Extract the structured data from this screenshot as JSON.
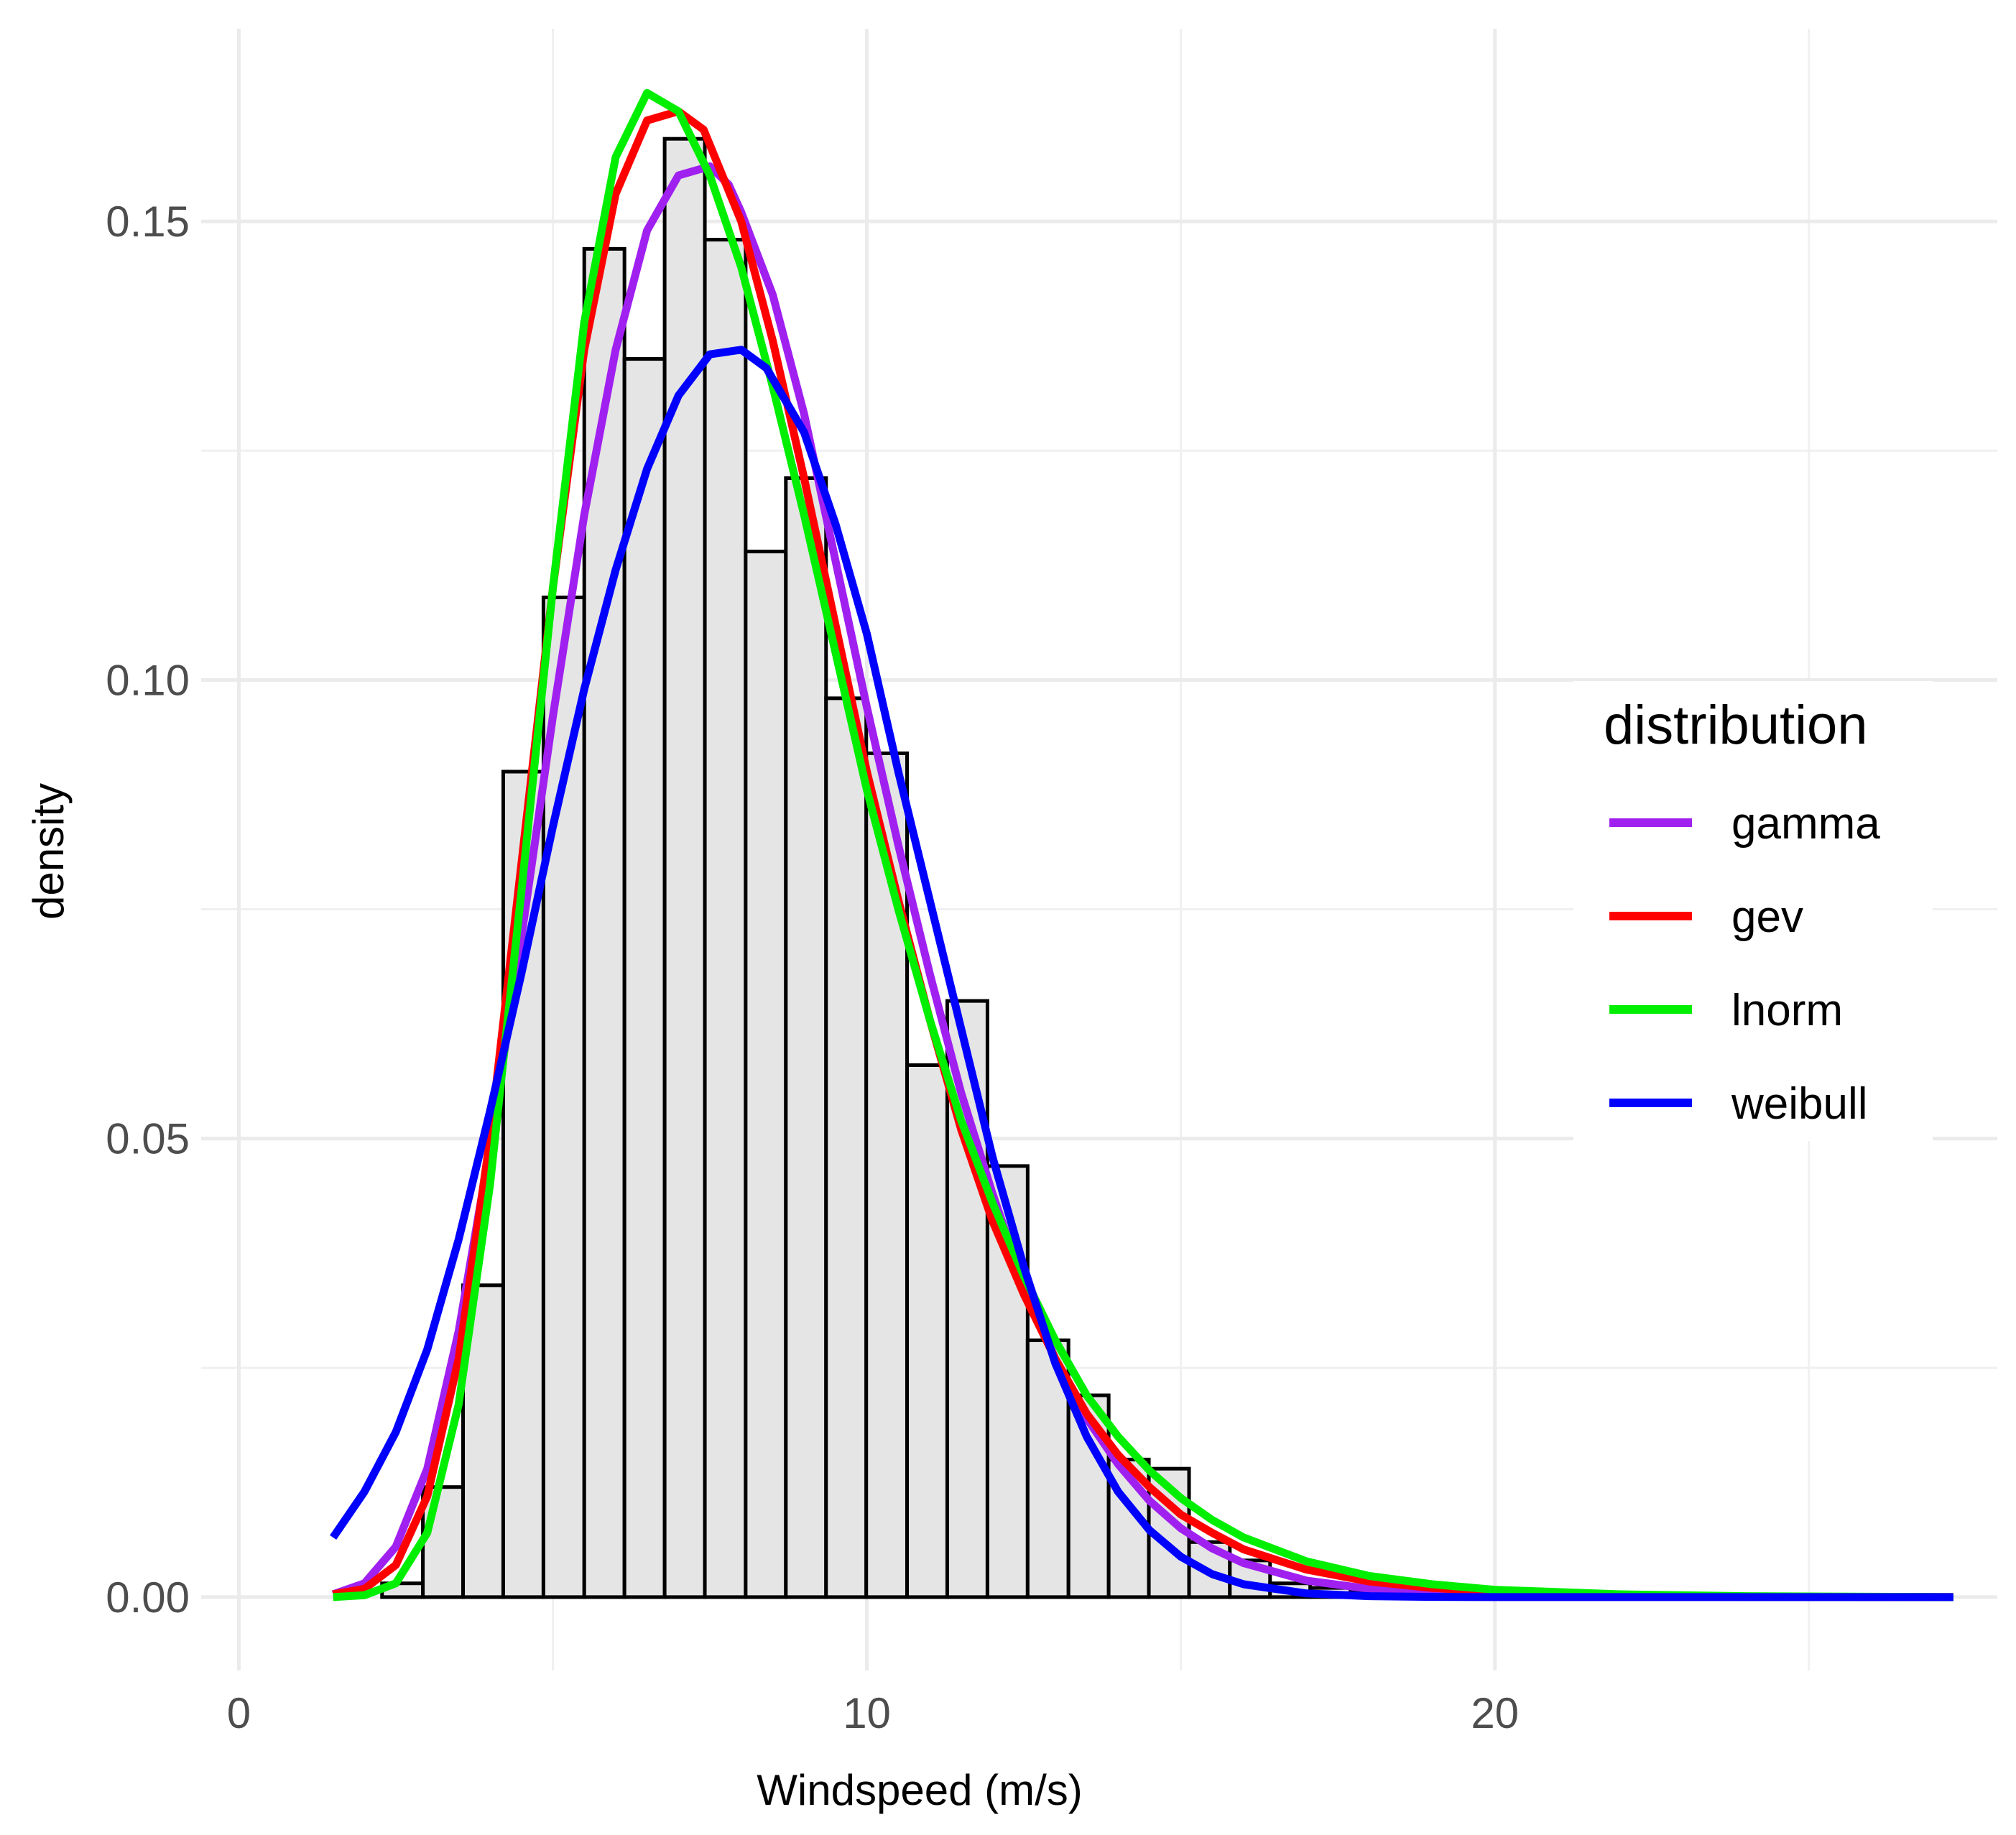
{
  "chart_data": {
    "type": "bar",
    "xlabel": "Windspeed (m/s)",
    "ylabel": "density",
    "xlim": [
      -0.6,
      28.0
    ],
    "ylim": [
      -0.008,
      0.171
    ],
    "x_ticks": [
      0,
      10,
      20
    ],
    "x_tick_labels": [
      "0",
      "10",
      "20"
    ],
    "y_ticks": [
      0.0,
      0.05,
      0.1,
      0.15
    ],
    "y_tick_labels": [
      "0.00",
      "0.05",
      "0.10",
      "0.15"
    ],
    "grid": true,
    "legend": {
      "title": "distribution",
      "placement": "right",
      "entries": [
        "gamma",
        "gev",
        "lnorm",
        "weibull"
      ]
    },
    "histogram": {
      "fill": "#e5e5e5",
      "outline": "#000000",
      "bins": [
        {
          "x0": 1.0,
          "x1": 1.64,
          "density": 0.0
        },
        {
          "x0": 1.64,
          "x1": 2.28,
          "density": 0.0
        },
        {
          "x0": 2.28,
          "x1": 2.93,
          "density": 0.0015
        },
        {
          "x0": 2.93,
          "x1": 3.57,
          "density": 0.012
        },
        {
          "x0": 3.57,
          "x1": 4.21,
          "density": 0.034
        },
        {
          "x0": 4.21,
          "x1": 4.85,
          "density": 0.09
        },
        {
          "x0": 4.85,
          "x1": 5.5,
          "density": 0.109
        },
        {
          "x0": 5.5,
          "x1": 6.14,
          "density": 0.147
        },
        {
          "x0": 6.14,
          "x1": 6.78,
          "density": 0.135
        },
        {
          "x0": 6.78,
          "x1": 7.42,
          "density": 0.159
        },
        {
          "x0": 7.42,
          "x1": 8.07,
          "density": 0.148
        },
        {
          "x0": 8.07,
          "x1": 8.71,
          "density": 0.114
        },
        {
          "x0": 8.71,
          "x1": 9.35,
          "density": 0.122
        },
        {
          "x0": 9.35,
          "x1": 9.99,
          "density": 0.098
        },
        {
          "x0": 9.99,
          "x1": 10.64,
          "density": 0.092
        },
        {
          "x0": 10.64,
          "x1": 11.28,
          "density": 0.058
        },
        {
          "x0": 11.28,
          "x1": 11.92,
          "density": 0.065
        },
        {
          "x0": 11.92,
          "x1": 12.56,
          "density": 0.047
        },
        {
          "x0": 12.56,
          "x1": 13.21,
          "density": 0.028
        },
        {
          "x0": 13.21,
          "x1": 13.85,
          "density": 0.022
        },
        {
          "x0": 13.85,
          "x1": 14.49,
          "density": 0.015
        },
        {
          "x0": 14.49,
          "x1": 15.13,
          "density": 0.014
        },
        {
          "x0": 15.13,
          "x1": 15.78,
          "density": 0.006
        },
        {
          "x0": 15.78,
          "x1": 16.42,
          "density": 0.004
        },
        {
          "x0": 16.42,
          "x1": 17.06,
          "density": 0.0015
        },
        {
          "x0": 17.06,
          "x1": 17.7,
          "density": 0.001
        },
        {
          "x0": 17.7,
          "x1": 18.35,
          "density": 0.0007
        },
        {
          "x0": 18.35,
          "x1": 18.99,
          "density": 0.0004
        },
        {
          "x0": 18.99,
          "x1": 19.63,
          "density": 0.0003
        },
        {
          "x0": 19.63,
          "x1": 27.3,
          "density": 0.0
        }
      ]
    },
    "series": [
      {
        "name": "gamma",
        "color": "#a020f0",
        "x": [
          1.5,
          2.0,
          2.5,
          3.0,
          3.5,
          4.0,
          4.5,
          5.0,
          5.5,
          6.0,
          6.5,
          7.0,
          7.5,
          7.8,
          8.0,
          8.5,
          9.0,
          9.5,
          10.0,
          10.5,
          11.0,
          11.5,
          12.0,
          12.5,
          13.0,
          13.5,
          14.0,
          14.5,
          15.0,
          15.5,
          16.0,
          17.0,
          18.0,
          19.0,
          20.0,
          22.0,
          24.0,
          27.3
        ],
        "y": [
          0.0003,
          0.0015,
          0.0055,
          0.014,
          0.029,
          0.049,
          0.072,
          0.096,
          0.118,
          0.136,
          0.149,
          0.155,
          0.156,
          0.154,
          0.151,
          0.142,
          0.129,
          0.113,
          0.097,
          0.082,
          0.068,
          0.055,
          0.044,
          0.034,
          0.026,
          0.0195,
          0.0145,
          0.0105,
          0.0075,
          0.0053,
          0.0037,
          0.0018,
          0.0009,
          0.0004,
          0.0002,
          4e-05,
          1e-05,
          0.0
        ]
      },
      {
        "name": "gev",
        "color": "#ff0000",
        "x": [
          1.5,
          2.0,
          2.5,
          3.0,
          3.5,
          4.0,
          4.5,
          5.0,
          5.5,
          6.0,
          6.5,
          7.0,
          7.4,
          8.0,
          8.5,
          9.0,
          9.5,
          10.0,
          10.5,
          11.0,
          11.5,
          12.0,
          12.5,
          13.0,
          13.5,
          14.0,
          14.5,
          15.0,
          15.5,
          16.0,
          17.0,
          18.0,
          19.0,
          20.0,
          22.0,
          24.0,
          27.3
        ],
        "y": [
          0.0003,
          0.0009,
          0.0035,
          0.011,
          0.026,
          0.05,
          0.08,
          0.11,
          0.136,
          0.153,
          0.161,
          0.162,
          0.16,
          0.15,
          0.137,
          0.122,
          0.106,
          0.09,
          0.076,
          0.063,
          0.051,
          0.041,
          0.033,
          0.026,
          0.02,
          0.0155,
          0.012,
          0.009,
          0.007,
          0.0052,
          0.003,
          0.0017,
          0.001,
          0.0006,
          0.0002,
          5e-05,
          0.0
        ]
      },
      {
        "name": "lnorm",
        "color": "#00ee00",
        "x": [
          1.5,
          2.0,
          2.5,
          3.0,
          3.5,
          4.0,
          4.5,
          5.0,
          5.5,
          6.0,
          6.5,
          7.0,
          7.5,
          8.0,
          8.5,
          9.0,
          9.5,
          10.0,
          10.5,
          11.0,
          11.5,
          12.0,
          12.5,
          13.0,
          13.5,
          14.0,
          14.5,
          15.0,
          15.5,
          16.0,
          17.0,
          18.0,
          19.0,
          20.0,
          22.0,
          24.0,
          27.3
        ],
        "y": [
          0.0,
          0.0002,
          0.0015,
          0.007,
          0.021,
          0.045,
          0.077,
          0.11,
          0.139,
          0.157,
          0.164,
          0.162,
          0.155,
          0.145,
          0.132,
          0.118,
          0.103,
          0.088,
          0.075,
          0.063,
          0.052,
          0.043,
          0.035,
          0.028,
          0.022,
          0.0175,
          0.0138,
          0.0108,
          0.0084,
          0.0065,
          0.0039,
          0.0023,
          0.0014,
          0.0008,
          0.0003,
          0.0001,
          0.0
        ]
      },
      {
        "name": "weibull",
        "color": "#0000ff",
        "x": [
          1.5,
          2.0,
          2.5,
          3.0,
          3.5,
          4.0,
          4.5,
          5.0,
          5.5,
          6.0,
          6.5,
          7.0,
          7.5,
          8.0,
          8.4,
          9.0,
          9.5,
          10.0,
          10.5,
          11.0,
          11.5,
          12.0,
          12.5,
          13.0,
          13.5,
          14.0,
          14.5,
          15.0,
          15.5,
          16.0,
          17.0,
          18.0,
          19.0,
          20.0,
          22.0,
          24.0,
          27.3
        ],
        "y": [
          0.0065,
          0.0115,
          0.018,
          0.027,
          0.039,
          0.053,
          0.068,
          0.084,
          0.099,
          0.112,
          0.123,
          0.131,
          0.1355,
          0.136,
          0.134,
          0.127,
          0.117,
          0.105,
          0.09,
          0.076,
          0.062,
          0.048,
          0.036,
          0.0255,
          0.0175,
          0.0115,
          0.0073,
          0.0044,
          0.0025,
          0.0014,
          0.0004,
          0.0001,
          2e-05,
          0.0,
          0.0,
          0.0,
          0.0
        ]
      }
    ]
  }
}
